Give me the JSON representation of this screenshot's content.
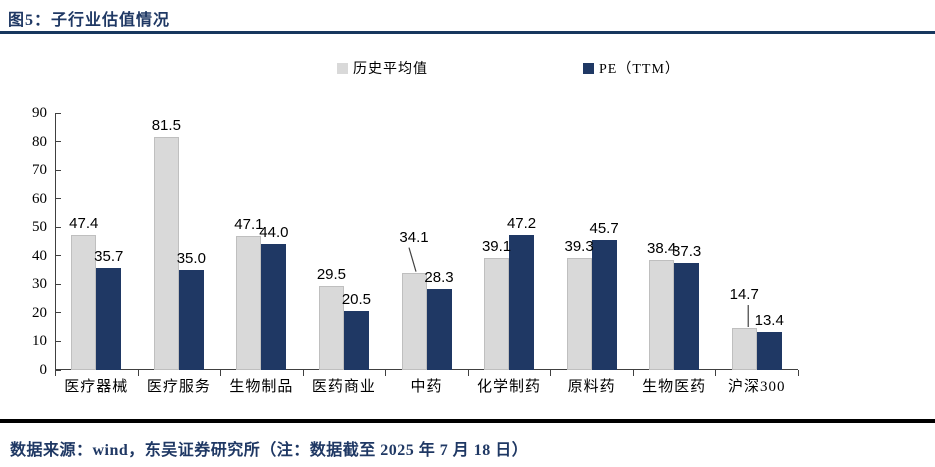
{
  "header": {
    "title": "图5：子行业估值情况"
  },
  "footer": {
    "text": "数据来源：wind，东吴证券研究所（注：数据截至 2025 年 7 月 18 日）"
  },
  "colors": {
    "navy": "#1F3864",
    "gray": "#D9D9D9",
    "gray_border": "#BFBFBF",
    "axis": "#404040",
    "title_navy": "#1F3864",
    "rule_top": "#17375E",
    "rule_bottom": "#000000"
  },
  "chart_data": {
    "type": "bar",
    "title": "图5：子行业估值情况",
    "categories": [
      "医疗器械",
      "医疗服务",
      "生物制品",
      "医药商业",
      "中药",
      "化学制药",
      "原料药",
      "生物医药",
      "沪深300"
    ],
    "series": [
      {
        "name": "历史平均值",
        "color": "#D9D9D9",
        "values": [
          47.4,
          81.5,
          47.1,
          29.5,
          34.1,
          39.1,
          39.3,
          38.4,
          14.7
        ]
      },
      {
        "name": "PE（TTM）",
        "color": "#1F3864",
        "values": [
          35.7,
          35.0,
          44.0,
          20.5,
          28.3,
          47.2,
          45.7,
          37.3,
          13.4
        ]
      }
    ],
    "xlabel": "",
    "ylabel": "",
    "ylim": [
      0,
      90
    ],
    "ytick_step": 10,
    "grid": false,
    "legend_position": "top",
    "value_label_decimals": 1,
    "callouts": [
      {
        "series": 0,
        "index": 4,
        "raise": 24,
        "x1": -5,
        "x2": 2
      },
      {
        "series": 0,
        "index": 8,
        "raise": 22,
        "x1": 4,
        "x2": 4
      }
    ]
  }
}
